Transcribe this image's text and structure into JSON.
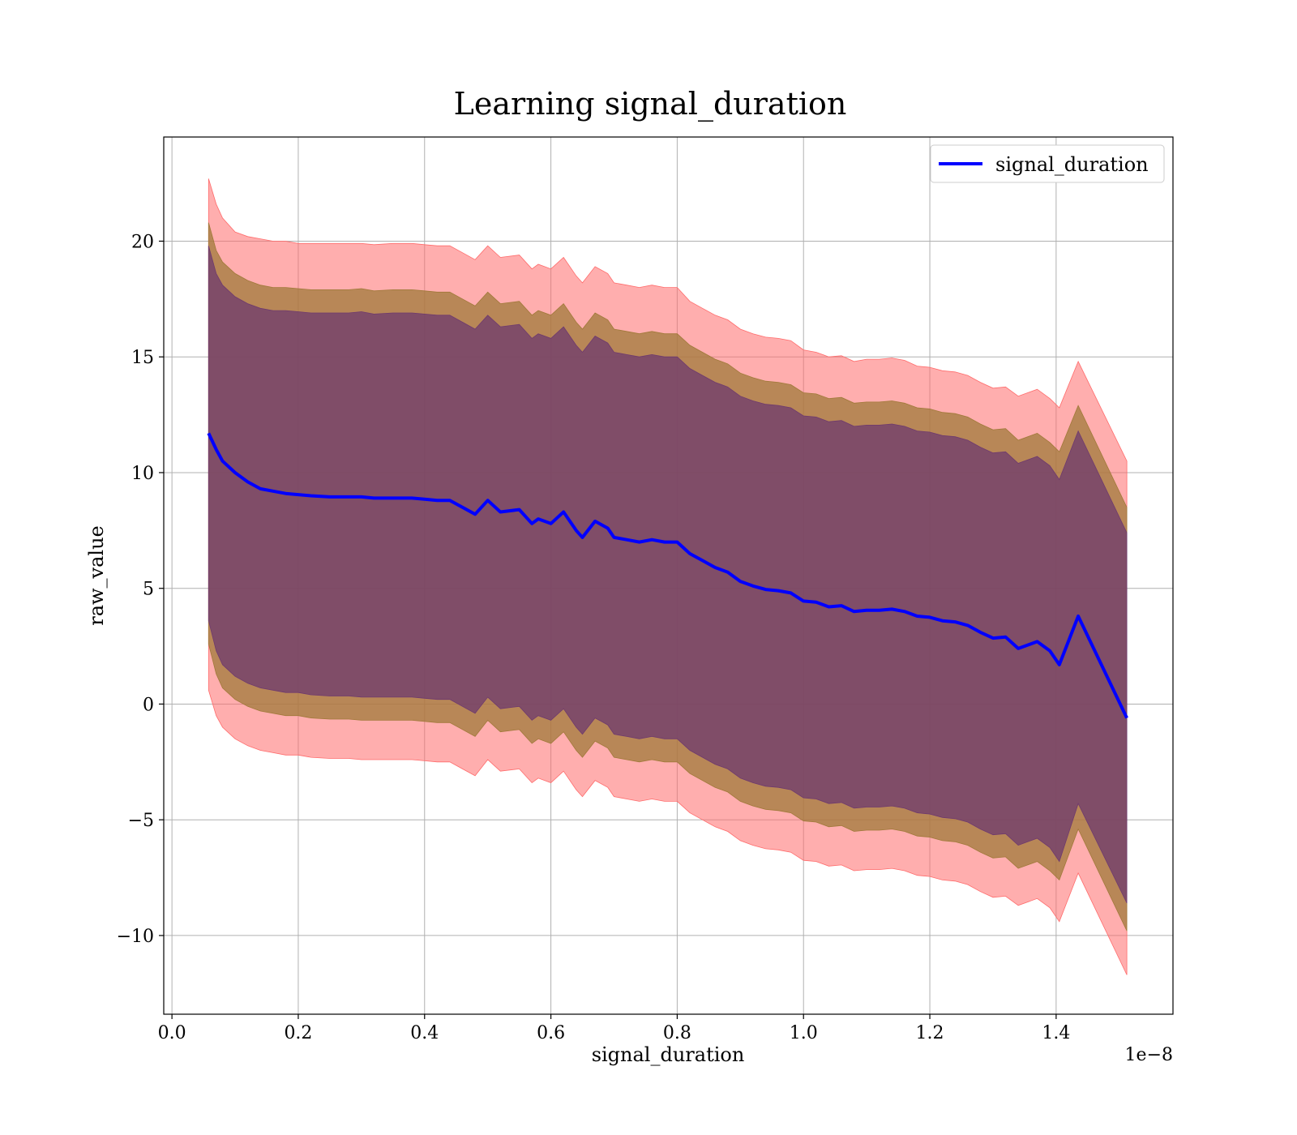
{
  "chart_data": {
    "type": "line",
    "title": "Learning signal_duration",
    "xlabel": "signal_duration",
    "ylabel": "raw_value",
    "x_offset_label": "1e−8",
    "xlim": [
      -0.013,
      1.585
    ],
    "ylim": [
      -13.4,
      24.5
    ],
    "grid": true,
    "legend_position": "top-right",
    "x_ticks": [
      0.0,
      0.2,
      0.4,
      0.6,
      0.8,
      1.0,
      1.2,
      1.4
    ],
    "x_tick_labels": [
      "0.0",
      "0.2",
      "0.4",
      "0.6",
      "0.8",
      "1.0",
      "1.2",
      "1.4"
    ],
    "y_ticks": [
      -10,
      -5,
      0,
      5,
      10,
      15,
      20
    ],
    "y_tick_labels": [
      "−10",
      "−5",
      "0",
      "5",
      "10",
      "15",
      "20"
    ],
    "colors": {
      "line": "#0000ff",
      "band_outer": "#ff6b6b",
      "band_middle": "#a0793a",
      "band_inner": "#6e3a6e"
    },
    "series": [
      {
        "name": "signal_duration",
        "x": [
          0.058,
          0.07,
          0.08,
          0.1,
          0.12,
          0.14,
          0.16,
          0.18,
          0.2,
          0.22,
          0.25,
          0.28,
          0.3,
          0.32,
          0.35,
          0.38,
          0.4,
          0.42,
          0.44,
          0.46,
          0.48,
          0.5,
          0.52,
          0.55,
          0.57,
          0.58,
          0.6,
          0.62,
          0.64,
          0.65,
          0.67,
          0.69,
          0.7,
          0.72,
          0.74,
          0.76,
          0.78,
          0.8,
          0.82,
          0.84,
          0.86,
          0.88,
          0.9,
          0.92,
          0.94,
          0.96,
          0.98,
          1.0,
          1.02,
          1.04,
          1.06,
          1.08,
          1.1,
          1.12,
          1.14,
          1.16,
          1.18,
          1.2,
          1.22,
          1.24,
          1.26,
          1.28,
          1.3,
          1.32,
          1.34,
          1.37,
          1.39,
          1.405,
          1.435,
          1.512
        ],
        "mean": [
          11.7,
          11.0,
          10.5,
          10.0,
          9.6,
          9.3,
          9.2,
          9.1,
          9.05,
          9.0,
          8.95,
          8.95,
          8.95,
          8.9,
          8.9,
          8.9,
          8.85,
          8.8,
          8.8,
          8.5,
          8.2,
          8.8,
          8.3,
          8.4,
          7.8,
          8.0,
          7.8,
          8.3,
          7.5,
          7.2,
          7.9,
          7.6,
          7.2,
          7.1,
          7.0,
          7.1,
          7.0,
          7.0,
          6.5,
          6.2,
          5.9,
          5.7,
          5.3,
          5.1,
          4.95,
          4.9,
          4.8,
          4.45,
          4.4,
          4.2,
          4.25,
          4.0,
          4.05,
          4.05,
          4.1,
          4.0,
          3.8,
          3.75,
          3.6,
          3.55,
          3.4,
          3.1,
          2.85,
          2.9,
          2.4,
          2.7,
          2.3,
          1.7,
          3.8,
          -0.6
        ],
        "upper_1": [
          19.8,
          18.6,
          18.1,
          17.6,
          17.3,
          17.1,
          17.0,
          17.0,
          16.95,
          16.9,
          16.9,
          16.9,
          16.95,
          16.85,
          16.9,
          16.9,
          16.85,
          16.8,
          16.8,
          16.5,
          16.2,
          16.8,
          16.3,
          16.4,
          15.8,
          16.0,
          15.8,
          16.3,
          15.5,
          15.2,
          15.9,
          15.6,
          15.2,
          15.1,
          15.0,
          15.1,
          15.0,
          15.0,
          14.5,
          14.2,
          13.9,
          13.7,
          13.3,
          13.1,
          12.95,
          12.9,
          12.8,
          12.45,
          12.4,
          12.2,
          12.25,
          12.0,
          12.05,
          12.05,
          12.1,
          12.0,
          11.8,
          11.75,
          11.6,
          11.55,
          11.4,
          11.1,
          10.85,
          10.9,
          10.4,
          10.7,
          10.3,
          9.7,
          11.8,
          7.4
        ],
        "lower_1": [
          3.6,
          2.3,
          1.7,
          1.2,
          0.9,
          0.7,
          0.6,
          0.5,
          0.5,
          0.4,
          0.35,
          0.35,
          0.3,
          0.3,
          0.3,
          0.3,
          0.25,
          0.2,
          0.2,
          -0.1,
          -0.4,
          0.3,
          -0.2,
          -0.1,
          -0.7,
          -0.5,
          -0.7,
          -0.2,
          -1.0,
          -1.3,
          -0.6,
          -0.9,
          -1.3,
          -1.4,
          -1.5,
          -1.4,
          -1.5,
          -1.5,
          -2.0,
          -2.3,
          -2.6,
          -2.8,
          -3.2,
          -3.4,
          -3.55,
          -3.6,
          -3.7,
          -4.05,
          -4.1,
          -4.3,
          -4.25,
          -4.5,
          -4.45,
          -4.45,
          -4.4,
          -4.5,
          -4.7,
          -4.75,
          -4.9,
          -4.95,
          -5.1,
          -5.4,
          -5.65,
          -5.6,
          -6.1,
          -5.8,
          -6.2,
          -6.8,
          -4.3,
          -8.6
        ],
        "upper_2": [
          20.8,
          19.6,
          19.1,
          18.6,
          18.3,
          18.1,
          18.0,
          18.0,
          17.95,
          17.9,
          17.9,
          17.9,
          17.95,
          17.85,
          17.9,
          17.9,
          17.85,
          17.8,
          17.8,
          17.5,
          17.2,
          17.8,
          17.3,
          17.4,
          16.8,
          17.0,
          16.8,
          17.3,
          16.5,
          16.2,
          16.9,
          16.6,
          16.2,
          16.1,
          16.0,
          16.1,
          16.0,
          16.0,
          15.5,
          15.2,
          14.9,
          14.7,
          14.3,
          14.1,
          13.95,
          13.9,
          13.8,
          13.45,
          13.4,
          13.2,
          13.25,
          13.0,
          13.05,
          13.05,
          13.1,
          13.0,
          12.8,
          12.75,
          12.6,
          12.55,
          12.4,
          12.1,
          11.85,
          11.9,
          11.4,
          11.7,
          11.3,
          10.9,
          12.9,
          8.5
        ],
        "lower_2": [
          2.6,
          1.3,
          0.7,
          0.2,
          -0.1,
          -0.3,
          -0.4,
          -0.5,
          -0.5,
          -0.6,
          -0.65,
          -0.65,
          -0.7,
          -0.7,
          -0.7,
          -0.7,
          -0.75,
          -0.8,
          -0.8,
          -1.1,
          -1.4,
          -0.7,
          -1.2,
          -1.1,
          -1.7,
          -1.5,
          -1.7,
          -1.2,
          -2.0,
          -2.3,
          -1.6,
          -1.9,
          -2.3,
          -2.4,
          -2.5,
          -2.4,
          -2.5,
          -2.5,
          -3.0,
          -3.3,
          -3.6,
          -3.8,
          -4.2,
          -4.4,
          -4.55,
          -4.6,
          -4.7,
          -5.05,
          -5.1,
          -5.3,
          -5.25,
          -5.5,
          -5.45,
          -5.45,
          -5.4,
          -5.5,
          -5.7,
          -5.75,
          -5.9,
          -5.95,
          -6.1,
          -6.4,
          -6.65,
          -6.6,
          -7.1,
          -6.8,
          -7.2,
          -7.6,
          -5.4,
          -9.8
        ],
        "upper_3": [
          22.7,
          21.6,
          21.0,
          20.4,
          20.2,
          20.1,
          20.0,
          20.0,
          19.9,
          19.9,
          19.9,
          19.9,
          19.9,
          19.85,
          19.9,
          19.9,
          19.85,
          19.8,
          19.8,
          19.5,
          19.2,
          19.8,
          19.3,
          19.4,
          18.8,
          19.0,
          18.8,
          19.3,
          18.5,
          18.2,
          18.9,
          18.6,
          18.2,
          18.1,
          18.0,
          18.1,
          18.0,
          18.0,
          17.4,
          17.1,
          16.8,
          16.6,
          16.2,
          16.0,
          15.85,
          15.8,
          15.7,
          15.3,
          15.2,
          15.0,
          15.05,
          14.8,
          14.9,
          14.9,
          14.95,
          14.85,
          14.6,
          14.55,
          14.4,
          14.35,
          14.2,
          13.9,
          13.65,
          13.7,
          13.3,
          13.6,
          13.2,
          12.8,
          14.8,
          10.5
        ],
        "lower_3": [
          0.6,
          -0.5,
          -1.0,
          -1.5,
          -1.8,
          -2.0,
          -2.1,
          -2.2,
          -2.2,
          -2.3,
          -2.35,
          -2.35,
          -2.4,
          -2.4,
          -2.4,
          -2.4,
          -2.45,
          -2.5,
          -2.5,
          -2.8,
          -3.1,
          -2.4,
          -2.9,
          -2.8,
          -3.4,
          -3.2,
          -3.4,
          -2.9,
          -3.7,
          -4.0,
          -3.3,
          -3.6,
          -4.0,
          -4.1,
          -4.2,
          -4.1,
          -4.2,
          -4.2,
          -4.7,
          -5.0,
          -5.3,
          -5.5,
          -5.9,
          -6.1,
          -6.25,
          -6.3,
          -6.4,
          -6.75,
          -6.8,
          -7.0,
          -6.95,
          -7.2,
          -7.15,
          -7.15,
          -7.1,
          -7.2,
          -7.4,
          -7.45,
          -7.6,
          -7.65,
          -7.8,
          -8.1,
          -8.35,
          -8.3,
          -8.7,
          -8.4,
          -8.8,
          -9.4,
          -7.3,
          -11.7
        ]
      }
    ]
  }
}
